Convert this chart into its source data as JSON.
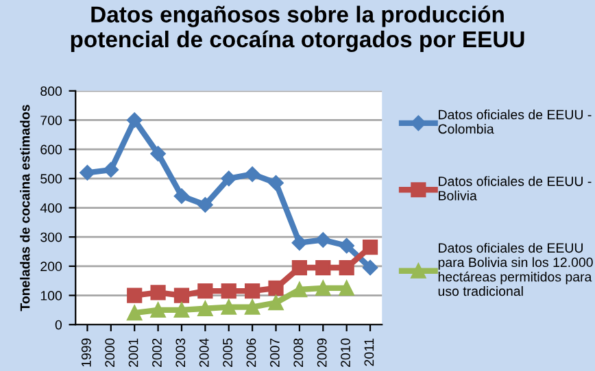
{
  "chart_data": {
    "type": "line",
    "title": "Datos engañosos sobre la producción\npotencial de cocaína otorgados por EEUU",
    "ylabel": "Toneladas de cocaina estimados",
    "categories": [
      "1999",
      "2000",
      "2001",
      "2002",
      "2003",
      "2004",
      "2005",
      "2006",
      "2007",
      "2008",
      "2009",
      "2010",
      "2011"
    ],
    "series": [
      {
        "name": "Datos oficiales de EEUU -\nColombia",
        "color": "#4a7ebb",
        "marker": "diamond",
        "values": [
          520,
          530,
          700,
          585,
          440,
          410,
          500,
          515,
          485,
          280,
          290,
          270,
          195
        ]
      },
      {
        "name": "Datos oficiales de EEUU -\nBolivia",
        "color": "#be4b48",
        "marker": "square",
        "values": [
          null,
          null,
          100,
          110,
          100,
          115,
          115,
          115,
          125,
          195,
          195,
          195,
          265
        ]
      },
      {
        "name": "Datos oficiales de EEUU\npara Bolivia sin los 12.000\nhectáreas permitidos para\nuso tradicional",
        "color": "#98b954",
        "marker": "triangle",
        "values": [
          null,
          null,
          40,
          50,
          50,
          55,
          60,
          60,
          75,
          120,
          125,
          125,
          null
        ]
      }
    ],
    "ylim": [
      0,
      800
    ],
    "yticks": [
      0,
      100,
      200,
      300,
      400,
      500,
      600,
      700,
      800
    ],
    "grid": "y",
    "legend": "right",
    "line_style": "solid"
  }
}
